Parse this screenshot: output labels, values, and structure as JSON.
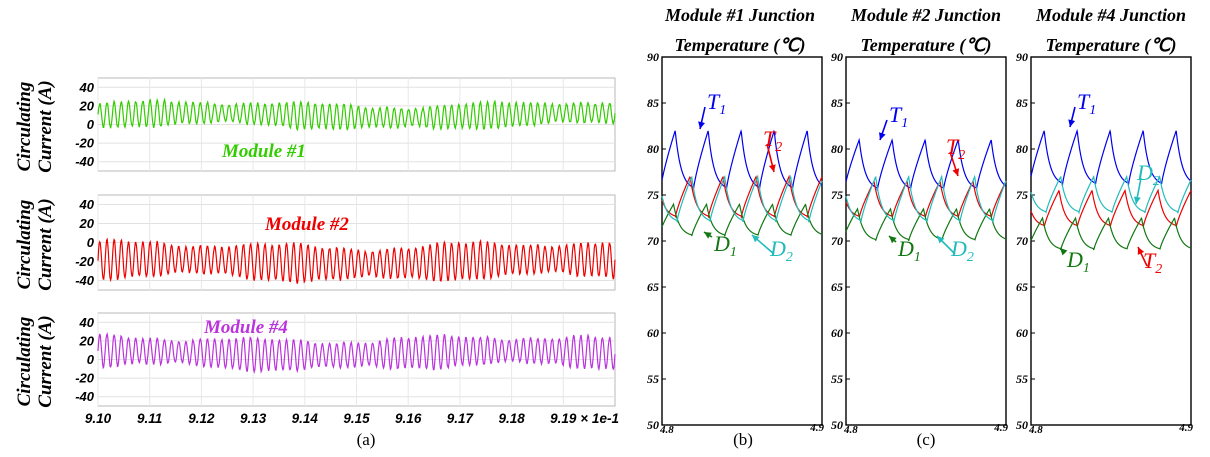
{
  "chart_data": [
    {
      "type": "line",
      "panel": "(a)",
      "ylabel": "Circulating Current (A)",
      "x_ticks": [
        "9.10",
        "9.11",
        "9.12",
        "9.13",
        "9.14",
        "9.15",
        "9.16",
        "9.17",
        "9.18",
        "9.19"
      ],
      "x_multiplier": "× 1e-1",
      "xlim": [
        0.91,
        0.92
      ],
      "y_ticks": [
        40,
        20,
        0,
        -20,
        -40
      ],
      "ylim": [
        -50,
        50
      ],
      "grid": true,
      "subplots": [
        {
          "label": "Module #1",
          "color": "#33cc00",
          "mean": 10,
          "amplitude": 12,
          "cycles": 72
        },
        {
          "label": "Module #2",
          "color": "#ee0000",
          "mean": -20,
          "amplitude": 17,
          "cycles": 72
        },
        {
          "label": "Module #4",
          "color": "#bb33dd",
          "mean": 7,
          "amplitude": 15,
          "cycles": 72
        }
      ]
    },
    {
      "type": "line",
      "panel": "(b)",
      "title": "Module #1 Junction Temperature (℃)",
      "xlim": [
        4.8,
        4.9
      ],
      "x_ticks": [
        "4.8",
        "4.9"
      ],
      "ylim": [
        50,
        90
      ],
      "y_ticks": [
        90,
        85,
        80,
        75,
        70,
        65,
        60,
        55,
        50
      ],
      "series": [
        {
          "name": "T1",
          "color": "#0000ee",
          "min": 75.5,
          "max": 82
        },
        {
          "name": "T2",
          "color": "#ee0000",
          "min": 72.5,
          "max": 77
        },
        {
          "name": "D1",
          "color": "#117711",
          "min": 70.5,
          "max": 74
        },
        {
          "name": "D2",
          "color": "#22bbbb",
          "min": 72,
          "max": 77
        }
      ],
      "labels": {
        "T1": "T",
        "T1_sub": "1",
        "T2": "T",
        "T2_sub": "2",
        "D1": "D",
        "D1_sub": "1",
        "D2": "D",
        "D2_sub": "2"
      }
    },
    {
      "type": "line",
      "panel": "(c)",
      "title": "Module #2 Junction Temperature (℃)",
      "xlim": [
        4.8,
        4.9
      ],
      "x_ticks": [
        "4.8",
        "4.9"
      ],
      "ylim": [
        50,
        90
      ],
      "y_ticks": [
        90,
        85,
        80,
        75,
        70,
        65,
        60,
        55,
        50
      ],
      "series": [
        {
          "name": "T1",
          "color": "#0000ee",
          "min": 75.5,
          "max": 81
        },
        {
          "name": "T2",
          "color": "#ee0000",
          "min": 72.5,
          "max": 76.5
        },
        {
          "name": "D1",
          "color": "#117711",
          "min": 70,
          "max": 73.5
        },
        {
          "name": "D2",
          "color": "#22bbbb",
          "min": 72,
          "max": 77
        }
      ],
      "labels": {
        "T1": "T",
        "T1_sub": "1",
        "T2": "T",
        "T2_sub": "2",
        "D1": "D",
        "D1_sub": "1",
        "D2": "D",
        "D2_sub": "2"
      }
    },
    {
      "type": "line",
      "panel": "",
      "title": "Module #4 Junction Temperature (℃)",
      "xlim": [
        4.8,
        4.9
      ],
      "x_ticks": [
        "4.8",
        "4.9"
      ],
      "ylim": [
        50,
        90
      ],
      "y_ticks": [
        90,
        85,
        80,
        75,
        70,
        65,
        60,
        55,
        50
      ],
      "series": [
        {
          "name": "T1",
          "color": "#0000ee",
          "min": 76,
          "max": 82
        },
        {
          "name": "T2",
          "color": "#ee0000",
          "min": 71.5,
          "max": 75.5
        },
        {
          "name": "D1",
          "color": "#117711",
          "min": 69,
          "max": 72.5
        },
        {
          "name": "D2",
          "color": "#22bbbb",
          "min": 73,
          "max": 77
        }
      ],
      "labels": {
        "T1": "T",
        "T1_sub": "1",
        "T2": "T",
        "T2_sub": "2",
        "D1": "D",
        "D1_sub": "1",
        "D2": "D",
        "D2_sub": "2"
      }
    }
  ]
}
